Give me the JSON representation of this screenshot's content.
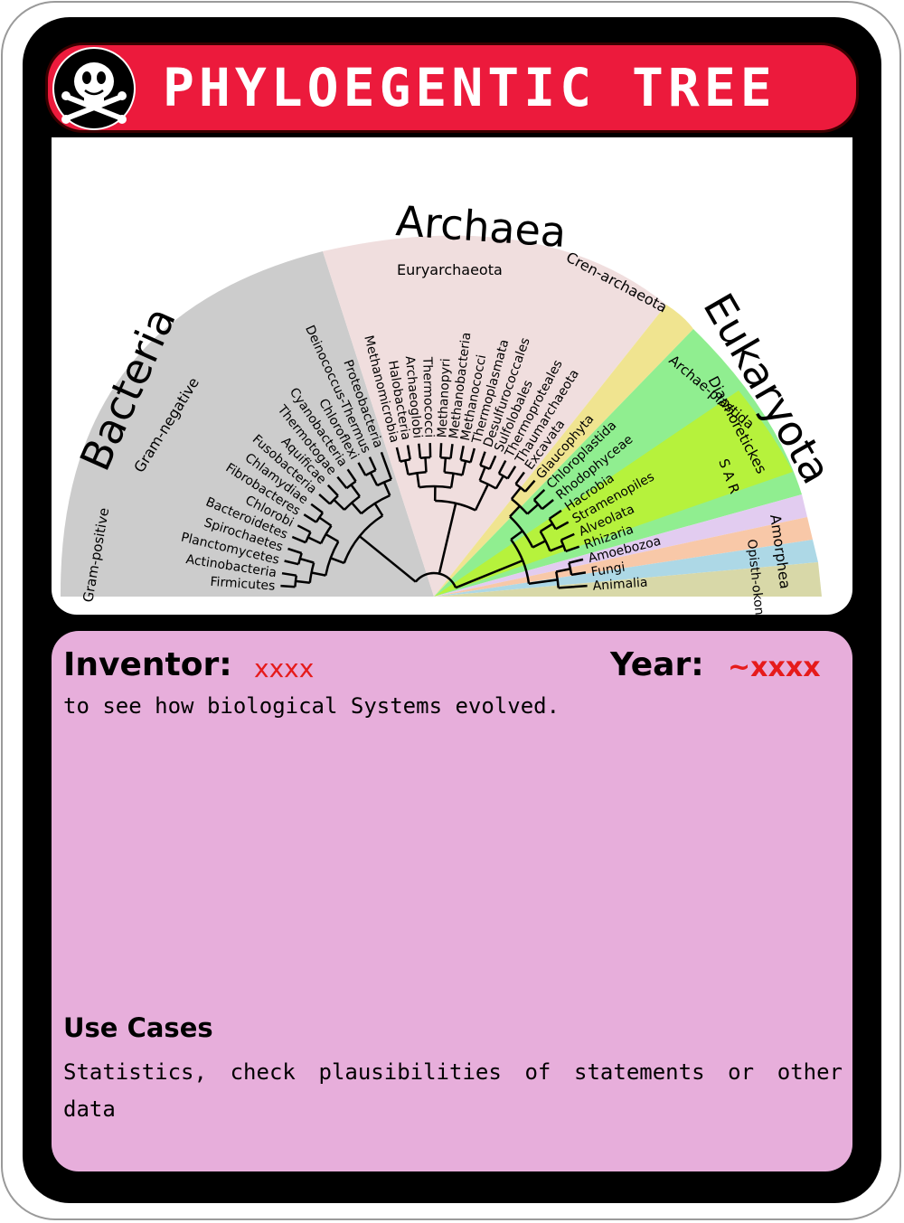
{
  "card": {
    "title": "PHYLOEGENTIC TREE",
    "logo_icon": "skull-crossbones-icon"
  },
  "diagram": {
    "domains": [
      {
        "name": "Bacteria",
        "color": "#cccccc"
      },
      {
        "name": "Archaea",
        "color": "#f0dede"
      },
      {
        "name": "Eukaryota",
        "color": "#90ee90"
      }
    ],
    "groups": {
      "gram_positive": "Gram-positive",
      "gram_negative": "Gram-negative",
      "euryarchaeota": "Euryarchaeota",
      "crenarchaeota": "Cren-archaeota",
      "archaeplastida": "Archae-plastida",
      "diaphoretickes": "Diaphoretickes",
      "sar": "S A R",
      "amorphea": "Amorphea",
      "opisthokonta": "Opisth-okonta"
    },
    "bacteria_taxa": [
      "Firmicutes",
      "Actinobacteria",
      "Planctomycetes",
      "Spirochaetes",
      "Bacteroidetes",
      "Chlorobi",
      "Fibrobacteres",
      "Chlamydiae",
      "Fusobacteria",
      "Aquificae",
      "Thermotogae",
      "Cyanobacteria",
      "Chloroflexi",
      "Deinococcus-Thermus",
      "Proteobacteria"
    ],
    "archaea_taxa": [
      "Methanomicrobia",
      "Halobacteria",
      "Archaeoglobi",
      "Thermococci",
      "Methanopyri",
      "Methanobacteria",
      "Methanococci",
      "Thermoplasmata",
      "Desulfurococcales",
      "Sulfolobales",
      "Thermoproteales",
      "Thaumarchaeota"
    ],
    "eukaryota_taxa": [
      "Excavata",
      "Glaucophyta",
      "Chloroplastida",
      "Rhodophyceae",
      "Hacrobia",
      "Stramenopiles",
      "Alveolata",
      "Rhizaria",
      "Amoebozoa",
      "Fungi",
      "Animalia"
    ]
  },
  "info": {
    "inventor_label": "Inventor:",
    "inventor_value": "xxxx",
    "year_label": "Year:",
    "year_value": "~xxxx",
    "purpose": "to see how biological Systems evolved.",
    "use_cases_heading": "Use Cases",
    "use_cases_text": "Statistics, check plausibilities of statements or other data"
  }
}
